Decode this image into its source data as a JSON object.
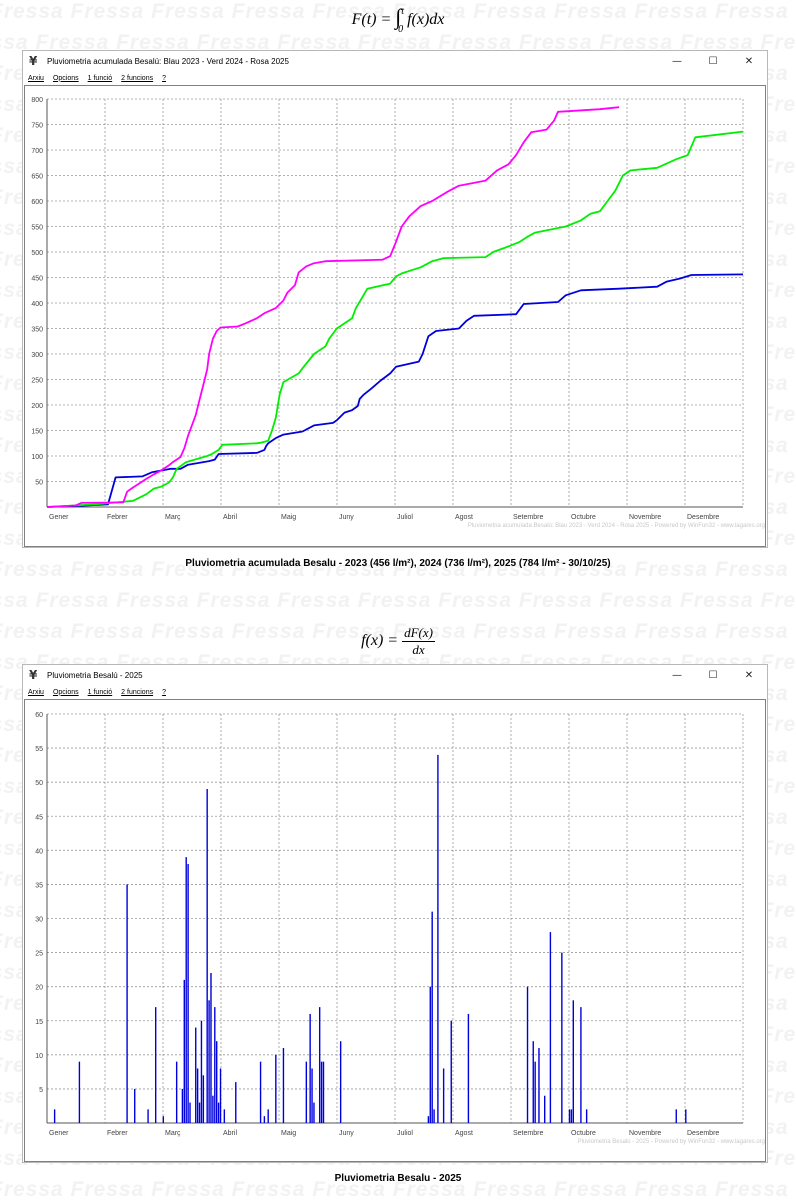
{
  "watermark_text": "Fressa",
  "formula1": {
    "lhs": "F(t) =",
    "integral": "∫",
    "upper": "t",
    "lower": "0",
    "integrand": "f(x)dx"
  },
  "formula2": {
    "lhs": "f(x) =",
    "numerator": "dF(x)",
    "denominator": "dx"
  },
  "window1": {
    "title": "Pluviometria acumulada Besalú: Blau 2023 - Verd 2024 - Rosa 2025",
    "menu": [
      "Arxiu",
      "Opcions",
      "1 funció",
      "2 funcions",
      "?"
    ],
    "controls": {
      "minimize": "—",
      "maximize": "☐",
      "close": "✕"
    },
    "watermark": "Pluviometria acumulada Besalú: Blau 2023 - Verd 2024 - Rosa 2025 - Powered by WinFun32 - www.lagares.org"
  },
  "caption1": "Pluviometria acumulada Besalu - 2023 (456 l/m²), 2024 (736 l/m²), 2025 (784 l/m² - 30/10/25)",
  "window2": {
    "title": "Pluviometria Besalú - 2025",
    "menu": [
      "Arxiu",
      "Opcions",
      "1 funció",
      "2 funcions",
      "?"
    ],
    "controls": {
      "minimize": "—",
      "maximize": "☐",
      "close": "✕"
    },
    "watermark": "Pluviometria Besalú - 2025 - Powered by WinFun32 - www.lagares.org"
  },
  "caption2": "Pluviometria Besalu - 2025",
  "chart_data": [
    {
      "type": "line",
      "xlabels": [
        "Gener",
        "Febrer",
        "Març",
        "Abril",
        "Maig",
        "Juny",
        "Juliol",
        "Agost",
        "Setembre",
        "Octubre",
        "Novembre",
        "Desembre"
      ],
      "xlim": [
        0,
        365
      ],
      "ylim": [
        0,
        800
      ],
      "yticks": [
        50,
        100,
        150,
        200,
        250,
        300,
        350,
        400,
        450,
        500,
        550,
        600,
        650,
        700,
        750,
        800
      ],
      "grid": true,
      "series": [
        {
          "color": "#0000dd",
          "points": [
            [
              0,
              0
            ],
            [
              15,
              2
            ],
            [
              32,
              5
            ],
            [
              36,
              58
            ],
            [
              50,
              60
            ],
            [
              55,
              68
            ],
            [
              65,
              75
            ],
            [
              70,
              75
            ],
            [
              74,
              83
            ],
            [
              85,
              90
            ],
            [
              88,
              93
            ],
            [
              90,
              104
            ],
            [
              110,
              106
            ],
            [
              114,
              112
            ],
            [
              115,
              120
            ],
            [
              116,
              125
            ],
            [
              120,
              135
            ],
            [
              124,
              142
            ],
            [
              134,
              148
            ],
            [
              140,
              160
            ],
            [
              150,
              165
            ],
            [
              152,
              170
            ],
            [
              156,
              185
            ],
            [
              160,
              190
            ],
            [
              163,
              198
            ],
            [
              164,
              212
            ],
            [
              166,
              220
            ],
            [
              170,
              232
            ],
            [
              175,
              248
            ],
            [
              180,
              262
            ],
            [
              183,
              275
            ],
            [
              195,
              285
            ],
            [
              197,
              300
            ],
            [
              200,
              335
            ],
            [
              204,
              345
            ],
            [
              216,
              350
            ],
            [
              220,
              365
            ],
            [
              224,
              375
            ],
            [
              246,
              378
            ],
            [
              250,
              398
            ],
            [
              268,
              402
            ],
            [
              272,
              415
            ],
            [
              280,
              425
            ],
            [
              300,
              428
            ],
            [
              320,
              432
            ],
            [
              325,
              442
            ],
            [
              332,
              448
            ],
            [
              338,
              455
            ],
            [
              365,
              456
            ]
          ]
        },
        {
          "color": "#00ee00",
          "points": [
            [
              0,
              0
            ],
            [
              25,
              5
            ],
            [
              45,
              12
            ],
            [
              52,
              25
            ],
            [
              56,
              36
            ],
            [
              60,
              40
            ],
            [
              64,
              48
            ],
            [
              66,
              58
            ],
            [
              68,
              75
            ],
            [
              73,
              88
            ],
            [
              84,
              100
            ],
            [
              86,
              103
            ],
            [
              90,
              112
            ],
            [
              92,
              122
            ],
            [
              110,
              125
            ],
            [
              112,
              126
            ],
            [
              116,
              130
            ],
            [
              118,
              150
            ],
            [
              120,
              175
            ],
            [
              122,
              220
            ],
            [
              124,
              245
            ],
            [
              132,
              262
            ],
            [
              134,
              272
            ],
            [
              140,
              300
            ],
            [
              146,
              315
            ],
            [
              148,
              330
            ],
            [
              152,
              350
            ],
            [
              160,
              370
            ],
            [
              162,
              390
            ],
            [
              166,
              415
            ],
            [
              168,
              428
            ],
            [
              180,
              438
            ],
            [
              183,
              452
            ],
            [
              186,
              458
            ],
            [
              196,
              470
            ],
            [
              202,
              482
            ],
            [
              208,
              488
            ],
            [
              230,
              490
            ],
            [
              234,
              500
            ],
            [
              240,
              508
            ],
            [
              248,
              520
            ],
            [
              252,
              530
            ],
            [
              256,
              538
            ],
            [
              272,
              550
            ],
            [
              280,
              562
            ],
            [
              285,
              575
            ],
            [
              290,
              580
            ],
            [
              294,
              600
            ],
            [
              298,
              620
            ],
            [
              302,
              650
            ],
            [
              306,
              660
            ],
            [
              320,
              665
            ],
            [
              330,
              682
            ],
            [
              336,
              690
            ],
            [
              340,
              725
            ],
            [
              365,
              736
            ]
          ]
        },
        {
          "color": "#ff00ff",
          "points": [
            [
              0,
              0
            ],
            [
              15,
              3
            ],
            [
              18,
              8
            ],
            [
              40,
              9
            ],
            [
              42,
              30
            ],
            [
              45,
              38
            ],
            [
              50,
              50
            ],
            [
              52,
              55
            ],
            [
              56,
              64
            ],
            [
              60,
              72
            ],
            [
              64,
              82
            ],
            [
              66,
              88
            ],
            [
              70,
              98
            ],
            [
              72,
              115
            ],
            [
              74,
              140
            ],
            [
              76,
              160
            ],
            [
              78,
              180
            ],
            [
              80,
              210
            ],
            [
              82,
              240
            ],
            [
              84,
              270
            ],
            [
              85,
              300
            ],
            [
              87,
              330
            ],
            [
              89,
              345
            ],
            [
              91,
              352
            ],
            [
              100,
              354
            ],
            [
              104,
              360
            ],
            [
              110,
              370
            ],
            [
              114,
              380
            ],
            [
              120,
              390
            ],
            [
              124,
              405
            ],
            [
              126,
              420
            ],
            [
              130,
              435
            ],
            [
              132,
              460
            ],
            [
              136,
              472
            ],
            [
              140,
              478
            ],
            [
              146,
              482
            ],
            [
              176,
              485
            ],
            [
              180,
              492
            ],
            [
              183,
              520
            ],
            [
              186,
              550
            ],
            [
              190,
              570
            ],
            [
              196,
              590
            ],
            [
              202,
              600
            ],
            [
              210,
              618
            ],
            [
              216,
              630
            ],
            [
              230,
              640
            ],
            [
              236,
              660
            ],
            [
              242,
              672
            ],
            [
              246,
              690
            ],
            [
              250,
              715
            ],
            [
              254,
              735
            ],
            [
              262,
              740
            ],
            [
              266,
              758
            ],
            [
              268,
              775
            ],
            [
              290,
              780
            ],
            [
              300,
              784
            ]
          ]
        }
      ]
    },
    {
      "type": "bar",
      "xlabels": [
        "Gener",
        "Febrer",
        "Març",
        "Abril",
        "Maig",
        "Juny",
        "Juliol",
        "Agost",
        "Setembre",
        "Octubre",
        "Novembre",
        "Desembre"
      ],
      "xlim": [
        0,
        365
      ],
      "ylim": [
        0,
        60
      ],
      "yticks": [
        5,
        10,
        15,
        20,
        25,
        30,
        35,
        40,
        45,
        50,
        55,
        60
      ],
      "grid": true,
      "color": "#0000dd",
      "x": [
        4,
        17,
        42,
        46,
        53,
        57,
        61,
        68,
        71,
        72,
        73,
        74,
        75,
        78,
        79,
        80,
        81,
        82,
        84,
        85,
        86,
        87,
        88,
        89,
        90,
        91,
        93,
        99,
        112,
        114,
        116,
        120,
        124,
        136,
        138,
        139,
        140,
        143,
        144,
        145,
        154,
        200,
        201,
        202,
        203,
        205,
        208,
        212,
        221,
        252,
        255,
        256,
        258,
        261,
        264,
        270,
        274,
        275,
        276,
        280,
        283,
        330,
        335
      ],
      "values": [
        2,
        9,
        35,
        5,
        2,
        17,
        1,
        9,
        5,
        21,
        39,
        38,
        3,
        14,
        8,
        3,
        15,
        7,
        49,
        18,
        22,
        4,
        17,
        12,
        3,
        8,
        2,
        6,
        9,
        1,
        2,
        10,
        11,
        9,
        16,
        8,
        3,
        17,
        9,
        9,
        12,
        1,
        20,
        31,
        2,
        54,
        8,
        15,
        16,
        20,
        12,
        9,
        11,
        4,
        28,
        25,
        2,
        2,
        18,
        17,
        2,
        2,
        2
      ]
    }
  ]
}
